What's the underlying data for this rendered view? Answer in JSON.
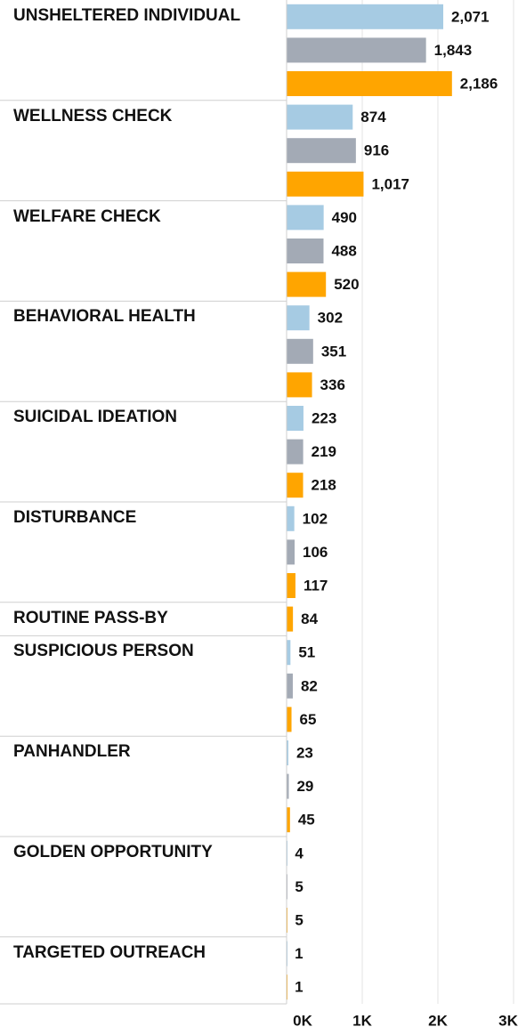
{
  "chart_data": {
    "type": "bar",
    "orientation": "horizontal",
    "categories": [
      "UNSHELTERED INDIVIDUAL",
      "WELLNESS CHECK",
      "WELFARE CHECK",
      "BEHAVIORAL HEALTH",
      "SUICIDAL IDEATION",
      "DISTURBANCE",
      "ROUTINE PASS-BY",
      "SUSPICIOUS PERSON",
      "PANHANDLER",
      "GOLDEN OPPORTUNITY",
      "TARGETED OUTREACH"
    ],
    "series": [
      {
        "color": "#a6cbe3",
        "values": [
          2071,
          874,
          490,
          302,
          223,
          102,
          null,
          51,
          23,
          4,
          1
        ],
        "value_labels": [
          "2,071",
          "874",
          "490",
          "302",
          "223",
          "102",
          null,
          "51",
          "23",
          "4",
          "1"
        ]
      },
      {
        "color": "#a3aab5",
        "values": [
          1843,
          916,
          488,
          351,
          219,
          106,
          null,
          82,
          29,
          5,
          null
        ],
        "value_labels": [
          "1,843",
          "916",
          "488",
          "351",
          "219",
          "106",
          null,
          "82",
          "29",
          "5",
          null
        ]
      },
      {
        "color": "#ffa500",
        "values": [
          2186,
          1017,
          520,
          336,
          218,
          117,
          84,
          65,
          45,
          5,
          1
        ],
        "value_labels": [
          "2,186",
          "1,017",
          "520",
          "336",
          "218",
          "117",
          "84",
          "65",
          "45",
          "5",
          "1"
        ]
      }
    ],
    "xlim": [
      0,
      3000
    ],
    "xticks": [
      {
        "value": 0,
        "label": "0K"
      },
      {
        "value": 1000,
        "label": "1K"
      },
      {
        "value": 2000,
        "label": "2K"
      },
      {
        "value": 3000,
        "label": "3K"
      }
    ],
    "grid": true
  }
}
